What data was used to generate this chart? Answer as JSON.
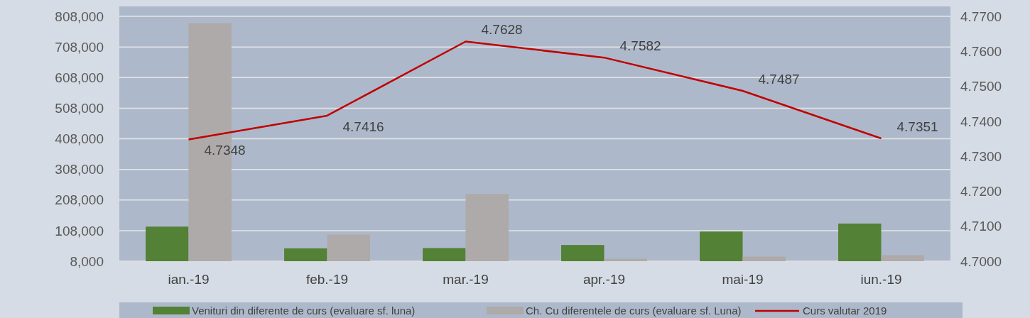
{
  "chart_data": {
    "type": "bar",
    "categories": [
      "ian.-19",
      "feb.-19",
      "mar.-19",
      "apr.-19",
      "mai-19",
      "iun.-19"
    ],
    "series": [
      {
        "name": "Venituri din diferente de curs (evaluare sf. luna)",
        "color": "#538135",
        "values": [
          121000,
          50000,
          51000,
          61000,
          105000,
          131000
        ]
      },
      {
        "name": "Ch. Cu diferentele de curs (evaluare sf. Luna)",
        "color": "#aeaaaa",
        "values": [
          786000,
          95000,
          228000,
          16000,
          23000,
          28000
        ]
      },
      {
        "name": "Curs valutar 2019",
        "type": "line",
        "axis": "y2",
        "color": "#c00000",
        "values": [
          4.7348,
          4.7416,
          4.7628,
          4.7582,
          4.7487,
          4.7351
        ],
        "value_labels": [
          "4.7348",
          "4.7416",
          "4.7628",
          "4.7582",
          "4.7487",
          "4.7351"
        ]
      }
    ],
    "ylim": [
      8000,
      808000
    ],
    "yticks": [
      {
        "value": 8000,
        "label": "8,000"
      },
      {
        "value": 108000,
        "label": "108,000"
      },
      {
        "value": 208000,
        "label": "208,000"
      },
      {
        "value": 308000,
        "label": "308,000"
      },
      {
        "value": 408000,
        "label": "408,000"
      },
      {
        "value": 508000,
        "label": "508,000"
      },
      {
        "value": 608000,
        "label": "608,000"
      },
      {
        "value": 708000,
        "label": "708,000"
      },
      {
        "value": 808000,
        "label": "808,000"
      }
    ],
    "y2lim": [
      4.7,
      4.77
    ],
    "y2ticks": [
      {
        "value": 4.7,
        "label": "4.7000"
      },
      {
        "value": 4.71,
        "label": "4.7100"
      },
      {
        "value": 4.72,
        "label": "4.7200"
      },
      {
        "value": 4.73,
        "label": "4.7300"
      },
      {
        "value": 4.74,
        "label": "4.7400"
      },
      {
        "value": 4.75,
        "label": "4.7500"
      },
      {
        "value": 4.76,
        "label": "4.7600"
      },
      {
        "value": 4.77,
        "label": "4.7700"
      }
    ],
    "grid": "y",
    "legend": "bottom"
  }
}
